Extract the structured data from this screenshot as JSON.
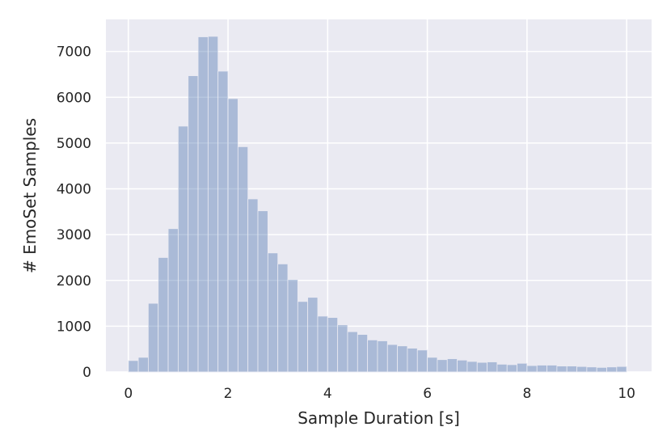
{
  "chart_data": {
    "type": "bar",
    "xlabel": "Sample Duration [s]",
    "ylabel": "# EmoSet Samples",
    "xlim": [
      -0.45,
      10.5
    ],
    "ylim": [
      0,
      7700
    ],
    "bin_width": 0.2,
    "x_ticks": [
      0,
      2,
      4,
      6,
      8,
      10
    ],
    "y_ticks": [
      0,
      1000,
      2000,
      3000,
      4000,
      5000,
      6000,
      7000
    ],
    "bin_starts": [
      0.0,
      0.2,
      0.4,
      0.6,
      0.8,
      1.0,
      1.2,
      1.4,
      1.6,
      1.8,
      2.0,
      2.2,
      2.4,
      2.6,
      2.8,
      3.0,
      3.2,
      3.4,
      3.6,
      3.8,
      4.0,
      4.2,
      4.4,
      4.6,
      4.8,
      5.0,
      5.2,
      5.4,
      5.6,
      5.8,
      6.0,
      6.2,
      6.4,
      6.6,
      6.8,
      7.0,
      7.2,
      7.4,
      7.6,
      7.8,
      8.0,
      8.2,
      8.4,
      8.6,
      8.8,
      9.0,
      9.2,
      9.4,
      9.6,
      9.8
    ],
    "values": [
      250,
      320,
      1500,
      2500,
      3130,
      5370,
      6470,
      7320,
      7330,
      6570,
      5970,
      4920,
      3780,
      3520,
      2600,
      2360,
      2020,
      1540,
      1630,
      1220,
      1190,
      1030,
      880,
      820,
      700,
      680,
      600,
      570,
      520,
      480,
      320,
      270,
      290,
      260,
      230,
      210,
      220,
      170,
      160,
      190,
      140,
      150,
      150,
      130,
      130,
      120,
      110,
      100,
      110,
      120
    ],
    "bar_color": "#4c72b0",
    "bar_alpha": 0.4,
    "background_color": "#eaeaf2",
    "grid": true,
    "grid_color": "#ffffff"
  }
}
